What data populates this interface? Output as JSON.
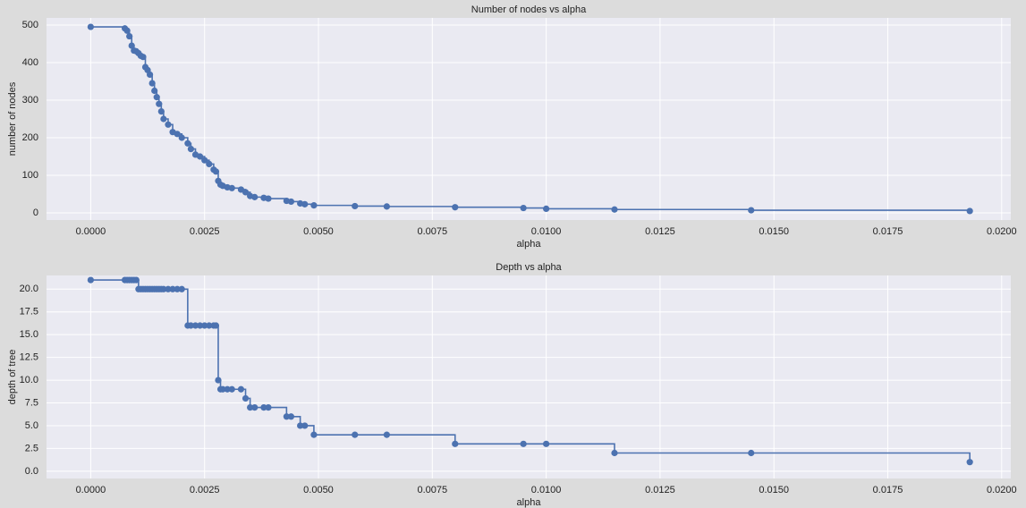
{
  "chart_data": [
    {
      "type": "line",
      "step": "post",
      "marker": "circle",
      "title": "Number of nodes vs alpha",
      "xlabel": "alpha",
      "ylabel": "number of nodes",
      "x": [
        0.0,
        0.00075,
        0.0008,
        0.00085,
        0.0009,
        0.00095,
        0.001,
        0.00105,
        0.0011,
        0.00115,
        0.0012,
        0.00125,
        0.0013,
        0.00135,
        0.0014,
        0.00145,
        0.0015,
        0.00155,
        0.0016,
        0.0017,
        0.0018,
        0.0019,
        0.002,
        0.00213,
        0.0022,
        0.0023,
        0.0024,
        0.0025,
        0.0026,
        0.0027,
        0.00275,
        0.0028,
        0.00285,
        0.0029,
        0.003,
        0.0031,
        0.0033,
        0.0034,
        0.0035,
        0.0036,
        0.0038,
        0.0039,
        0.0043,
        0.0044,
        0.0046,
        0.0047,
        0.0049,
        0.0058,
        0.0065,
        0.008,
        0.0095,
        0.01,
        0.0115,
        0.0145,
        0.0193
      ],
      "series": [
        {
          "name": "nodes",
          "color": "#4c72b0",
          "values": [
            495,
            491,
            485,
            470,
            445,
            432,
            430,
            425,
            418,
            415,
            388,
            380,
            368,
            345,
            325,
            308,
            290,
            270,
            250,
            235,
            215,
            210,
            200,
            185,
            170,
            155,
            150,
            140,
            130,
            115,
            110,
            85,
            75,
            72,
            68,
            66,
            62,
            55,
            45,
            42,
            40,
            38,
            32,
            30,
            25,
            23,
            20,
            18,
            17,
            15,
            13,
            11,
            9,
            7,
            5
          ]
        }
      ],
      "xlim": [
        -0.00097,
        0.0202
      ],
      "ylim": [
        -19,
        519
      ],
      "xticks": [
        {
          "value": 0,
          "label": "0.0000"
        },
        {
          "value": 0.0025,
          "label": "0.0025"
        },
        {
          "value": 0.005,
          "label": "0.0050"
        },
        {
          "value": 0.0075,
          "label": "0.0075"
        },
        {
          "value": 0.01,
          "label": "0.0100"
        },
        {
          "value": 0.0125,
          "label": "0.0125"
        },
        {
          "value": 0.015,
          "label": "0.0150"
        },
        {
          "value": 0.0175,
          "label": "0.0175"
        },
        {
          "value": 0.02,
          "label": "0.0200"
        }
      ],
      "yticks": [
        0,
        100,
        200,
        300,
        400,
        500
      ],
      "grid": true
    },
    {
      "type": "line",
      "step": "post",
      "marker": "circle",
      "title": "Depth vs alpha",
      "xlabel": "alpha",
      "ylabel": "depth of tree",
      "x": [
        0.0,
        0.00075,
        0.0008,
        0.00085,
        0.0009,
        0.00095,
        0.001,
        0.00105,
        0.0011,
        0.00115,
        0.0012,
        0.00125,
        0.0013,
        0.00135,
        0.0014,
        0.00145,
        0.0015,
        0.00155,
        0.0016,
        0.0017,
        0.0018,
        0.0019,
        0.002,
        0.00213,
        0.0022,
        0.0023,
        0.0024,
        0.0025,
        0.0026,
        0.0027,
        0.00275,
        0.0028,
        0.00285,
        0.0029,
        0.003,
        0.0031,
        0.0033,
        0.0034,
        0.0035,
        0.0036,
        0.0038,
        0.0039,
        0.0043,
        0.0044,
        0.0046,
        0.0047,
        0.0049,
        0.0058,
        0.0065,
        0.008,
        0.0095,
        0.01,
        0.0115,
        0.0145,
        0.0193
      ],
      "series": [
        {
          "name": "depth",
          "color": "#4c72b0",
          "values": [
            21,
            21,
            21,
            21,
            21,
            21,
            21,
            20,
            20,
            20,
            20,
            20,
            20,
            20,
            20,
            20,
            20,
            20,
            20,
            20,
            20,
            20,
            20,
            16,
            16,
            16,
            16,
            16,
            16,
            16,
            16,
            10,
            9,
            9,
            9,
            9,
            9,
            8,
            7,
            7,
            7,
            7,
            6,
            6,
            5,
            5,
            4,
            4,
            4,
            3,
            3,
            3,
            2,
            2,
            1
          ]
        }
      ],
      "xlim": [
        -0.00097,
        0.0202
      ],
      "ylim": [
        -0.8,
        21.5
      ],
      "xticks": [
        {
          "value": 0,
          "label": "0.0000"
        },
        {
          "value": 0.0025,
          "label": "0.0025"
        },
        {
          "value": 0.005,
          "label": "0.0050"
        },
        {
          "value": 0.0075,
          "label": "0.0075"
        },
        {
          "value": 0.01,
          "label": "0.0100"
        },
        {
          "value": 0.0125,
          "label": "0.0125"
        },
        {
          "value": 0.015,
          "label": "0.0150"
        },
        {
          "value": 0.0175,
          "label": "0.0175"
        },
        {
          "value": 0.02,
          "label": "0.0200"
        }
      ],
      "yticks": [
        {
          "value": 0,
          "label": "0.0"
        },
        {
          "value": 2.5,
          "label": "2.5"
        },
        {
          "value": 5,
          "label": "5.0"
        },
        {
          "value": 7.5,
          "label": "7.5"
        },
        {
          "value": 10,
          "label": "10.0"
        },
        {
          "value": 12.5,
          "label": "12.5"
        },
        {
          "value": 15,
          "label": "15.0"
        },
        {
          "value": 17.5,
          "label": "17.5"
        },
        {
          "value": 20,
          "label": "20.0"
        }
      ],
      "grid": true
    }
  ]
}
